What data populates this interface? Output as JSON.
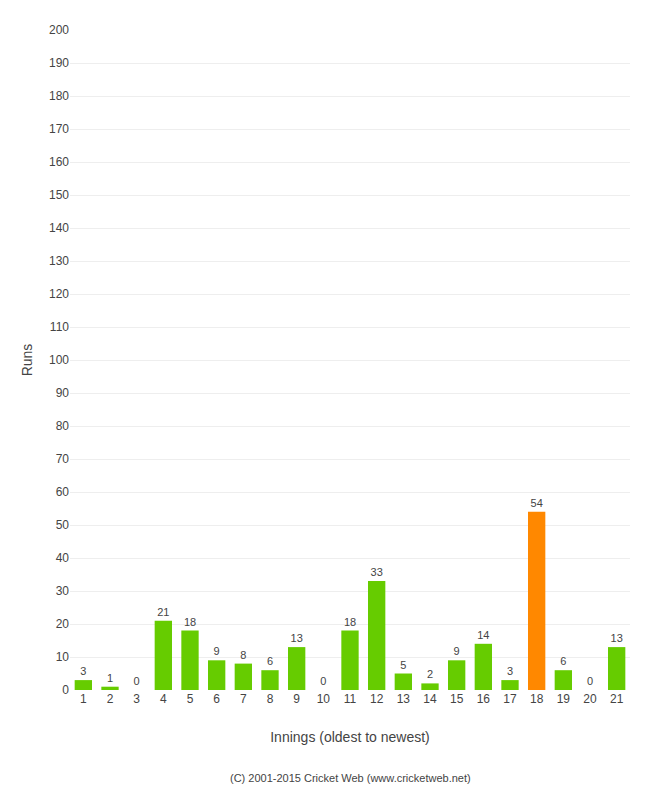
{
  "chart_data": {
    "type": "bar",
    "xlabel": "Innings (oldest to newest)",
    "ylabel": "Runs",
    "annotations": [
      "(C) 2001-2015 Cricket Web (www.cricketweb.net)"
    ],
    "categories": [
      "1",
      "2",
      "3",
      "4",
      "5",
      "6",
      "7",
      "8",
      "9",
      "10",
      "11",
      "12",
      "13",
      "14",
      "15",
      "16",
      "17",
      "18",
      "19",
      "20",
      "21"
    ],
    "values": [
      3,
      1,
      0,
      21,
      18,
      9,
      8,
      6,
      13,
      0,
      18,
      33,
      5,
      2,
      9,
      14,
      3,
      54,
      6,
      0,
      13
    ],
    "colors": [
      "#66cc00",
      "#66cc00",
      "#66cc00",
      "#66cc00",
      "#66cc00",
      "#66cc00",
      "#66cc00",
      "#66cc00",
      "#66cc00",
      "#66cc00",
      "#66cc00",
      "#66cc00",
      "#66cc00",
      "#66cc00",
      "#66cc00",
      "#66cc00",
      "#66cc00",
      "#ff8800",
      "#66cc00",
      "#66cc00",
      "#66cc00"
    ],
    "ylim": [
      0,
      200
    ],
    "yticks": [
      0,
      10,
      20,
      30,
      40,
      50,
      60,
      70,
      80,
      90,
      100,
      110,
      120,
      130,
      140,
      150,
      160,
      170,
      180,
      190,
      200
    ],
    "grid": true,
    "data_labels": true
  }
}
